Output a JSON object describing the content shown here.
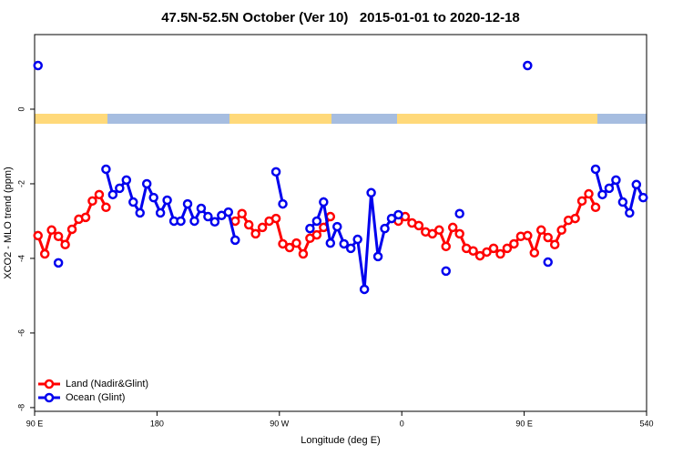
{
  "chart_data": {
    "type": "line",
    "title": "47.5N-52.5N October (Ver 10)   2015-01-01 to 2020-12-18",
    "x_label": "Longitude (deg E)",
    "y_label": "XCO2 - MLO trend (ppm)",
    "x": [
      92.5,
      97.5,
      102.5,
      107.5,
      112.5,
      117.5,
      122.5,
      127.5,
      132.5,
      137.5,
      142.5,
      147.5,
      152.5,
      157.5,
      162.5,
      167.5,
      172.5,
      177.5,
      182.5,
      187.5,
      192.5,
      197.5,
      202.5,
      207.5,
      212.5,
      217.5,
      222.5,
      227.5,
      232.5,
      237.5,
      242.5,
      247.5,
      252.5,
      257.5,
      262.5,
      267.5,
      272.5,
      277.5,
      282.5,
      287.5,
      292.5,
      297.5,
      302.5,
      307.5,
      312.5,
      317.5,
      322.5,
      327.5,
      332.5,
      337.5,
      342.5,
      347.5,
      352.5,
      357.5,
      362.5,
      367.5,
      372.5,
      377.5,
      382.5,
      387.5,
      392.5,
      397.5,
      402.5,
      407.5,
      412.5,
      417.5,
      422.5,
      427.5,
      432.5,
      437.5,
      442.5,
      447.5,
      452.5,
      457.5,
      462.5,
      467.5,
      472.5,
      477.5,
      482.5,
      487.5,
      492.5,
      497.5,
      502.5,
      507.5,
      512.5,
      517.5,
      522.5,
      527.5,
      532.5,
      537.5
    ],
    "series": [
      {
        "name": "Land (Nadir&Glint)",
        "color": "#ff0000",
        "values": [
          -3.39,
          -3.88,
          -3.24,
          -3.41,
          -3.63,
          -3.22,
          -2.95,
          -2.9,
          -2.46,
          -2.29,
          -2.63,
          null,
          null,
          null,
          null,
          null,
          null,
          null,
          null,
          null,
          null,
          null,
          null,
          null,
          null,
          null,
          null,
          null,
          null,
          -3.0,
          -2.8,
          -3.1,
          -3.34,
          -3.17,
          -3.0,
          -2.93,
          -3.61,
          -3.71,
          -3.59,
          -3.88,
          -3.46,
          -3.37,
          -3.17,
          -2.88,
          null,
          null,
          null,
          null,
          null,
          null,
          null,
          null,
          null,
          -3.0,
          -2.88,
          -3.05,
          -3.12,
          -3.29,
          -3.34,
          -3.24,
          -3.68,
          -3.17,
          -3.34,
          -3.73,
          -3.8,
          -3.93,
          -3.83,
          -3.73,
          -3.88,
          -3.73,
          -3.61,
          -3.41,
          -3.39,
          -3.85,
          -3.24,
          -3.44,
          -3.63,
          -3.24,
          -2.98,
          -2.93,
          -2.46,
          -2.27,
          -2.63,
          null,
          null,
          null,
          null,
          null,
          null,
          null
        ]
      },
      {
        "name": "Ocean (Glint)",
        "color": "#0000ee",
        "values": [
          1.17,
          null,
          null,
          -4.12,
          null,
          null,
          null,
          null,
          null,
          null,
          -1.61,
          -2.29,
          -2.12,
          -1.9,
          -2.49,
          -2.78,
          -2.0,
          -2.37,
          -2.78,
          -2.44,
          -3.0,
          -3.0,
          -2.54,
          -3.0,
          -2.66,
          -2.88,
          -3.02,
          -2.85,
          -2.76,
          -3.51,
          null,
          null,
          null,
          null,
          null,
          -1.68,
          -2.54,
          null,
          null,
          null,
          -3.2,
          -3.0,
          -2.49,
          -3.59,
          -3.15,
          -3.61,
          -3.73,
          -3.49,
          -4.83,
          -2.24,
          -3.95,
          -3.2,
          -2.93,
          -2.83,
          null,
          null,
          null,
          null,
          null,
          null,
          -4.34,
          null,
          -2.8,
          null,
          null,
          null,
          null,
          null,
          null,
          null,
          null,
          null,
          1.17,
          null,
          null,
          -4.1,
          null,
          null,
          null,
          null,
          null,
          null,
          -1.61,
          -2.29,
          -2.12,
          -1.9,
          -2.49,
          -2.78,
          -2.02,
          -2.37
        ]
      }
    ],
    "xlim": [
      90,
      540
    ],
    "xticks": [
      {
        "value": 90,
        "label": "90 E"
      },
      180,
      {
        "value": 270,
        "label": "90 W"
      },
      {
        "value": 360,
        "label": "0"
      },
      {
        "value": 450,
        "label": "90 E"
      },
      540
    ],
    "ylim": [
      -8.1,
      2
    ],
    "yticks": [
      0,
      -2,
      -4,
      -6,
      -8
    ],
    "legend": "bottom-left"
  }
}
